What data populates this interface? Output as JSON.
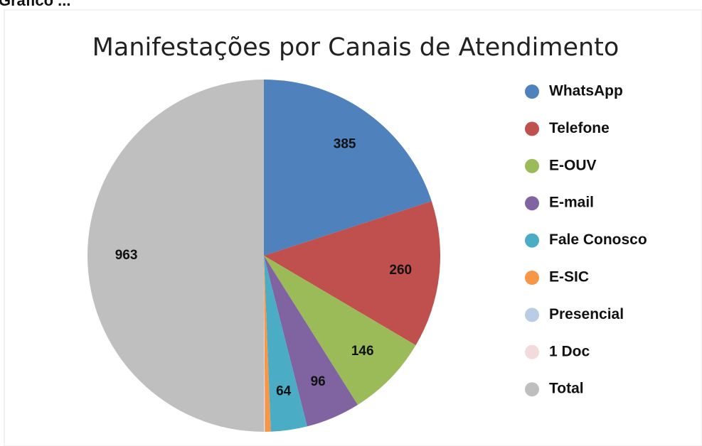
{
  "caption": "Gráfico ...",
  "chart_data": {
    "type": "pie",
    "title": "Manifestações por Canais de Atendimento",
    "categories": [
      "WhatsApp",
      "Telefone",
      "E-OUV",
      "E-mail",
      "Fale Conosco",
      "E-SIC",
      "Presencial",
      "1 Doc",
      "Total"
    ],
    "values": [
      385,
      260,
      146,
      96,
      64,
      10,
      1,
      1,
      963
    ],
    "value_labels": [
      "385",
      "260",
      "146",
      "96",
      "64",
      null,
      null,
      null,
      "963"
    ],
    "colors": [
      "#4f81bd",
      "#c0504d",
      "#9bbb59",
      "#8064a2",
      "#4bacc6",
      "#f79646",
      "#b9cde5",
      "#f2dcdb",
      "#bfbfbf"
    ],
    "legend": "right"
  }
}
